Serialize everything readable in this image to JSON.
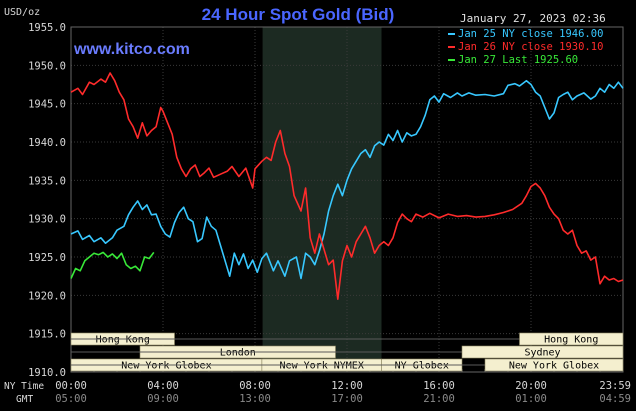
{
  "colors": {
    "background": "#000000",
    "grid": "#3a3a3a",
    "axis_text": "#d8d8d8",
    "title": "#4a66ff",
    "watermark": "#6a7cff",
    "shade": "#1c2a22",
    "session_fill": "#f4efcf",
    "session_text": "#000000",
    "series_jan25": "#38c8ff",
    "series_jan26": "#ff2b2b",
    "series_jan27": "#38e838",
    "hline": "#5a5a5a"
  },
  "chart_data": {
    "type": "line",
    "title": "24 Hour Spot Gold (Bid)",
    "unit_label": "USD/oz",
    "timestamp": "January 27, 2023 02:36",
    "watermark": "www.kitco.com",
    "ylim": [
      1910.0,
      1955.0
    ],
    "yticks": [
      "1955.0",
      "1950.0",
      "1945.0",
      "1940.0",
      "1935.0",
      "1930.0",
      "1925.0",
      "1920.0",
      "1915.0",
      "1910.0"
    ],
    "ytick_values": [
      1955,
      1950,
      1945,
      1940,
      1935,
      1930,
      1925,
      1920,
      1915,
      1910
    ],
    "xlim": [
      0,
      24
    ],
    "x_row1_label": "NY Time",
    "x_row2_label": "GMT",
    "xticks_ny": [
      "00:00",
      "04:00",
      "08:00",
      "12:00",
      "16:00",
      "20:00",
      "23:59"
    ],
    "xticks_gmt": [
      "05:00",
      "09:00",
      "13:00",
      "17:00",
      "21:00",
      "01:00",
      "04:59"
    ],
    "xtick_hours": [
      0,
      4,
      8,
      12,
      16,
      20,
      24
    ],
    "shaded_span": [
      8.33,
      13.5
    ],
    "legend": [
      {
        "text": "Jan 25 NY close 1946.00",
        "series": "jan25"
      },
      {
        "text": "Jan 26 NY close 1930.10",
        "series": "jan26"
      },
      {
        "text": "Jan 27 Last 1925.60",
        "series": "jan27"
      }
    ],
    "sessions": [
      {
        "label": "Hong Kong",
        "start": 0.0,
        "end": 4.5,
        "row": 0
      },
      {
        "label": "Hong Kong",
        "start": 19.5,
        "end": 24.0,
        "row": 0
      },
      {
        "label": "London",
        "start": 3.0,
        "end": 11.5,
        "row": 1
      },
      {
        "label": "Sydney",
        "start": 17.0,
        "end": 24.0,
        "row": 1
      },
      {
        "label": "New York Globex",
        "start": 0.0,
        "end": 8.3,
        "row": 2
      },
      {
        "label": "New York NYMEX",
        "start": 8.3,
        "end": 13.5,
        "row": 2
      },
      {
        "label": "NY Globex",
        "start": 13.5,
        "end": 17.0,
        "row": 2
      },
      {
        "label": "New York Globex",
        "start": 18.0,
        "end": 24.0,
        "row": 2
      }
    ],
    "series": [
      {
        "key": "jan25",
        "name": "Jan 25 NY close 1946.00",
        "x": [
          0.0,
          0.3,
          0.5,
          0.8,
          1.0,
          1.3,
          1.5,
          1.8,
          2.0,
          2.3,
          2.5,
          2.7,
          2.9,
          3.1,
          3.3,
          3.5,
          3.7,
          3.9,
          4.1,
          4.3,
          4.5,
          4.7,
          4.9,
          5.1,
          5.3,
          5.5,
          5.7,
          5.9,
          6.1,
          6.3,
          6.5,
          6.7,
          6.9,
          7.1,
          7.3,
          7.5,
          7.7,
          7.9,
          8.1,
          8.3,
          8.5,
          8.8,
          9.0,
          9.3,
          9.5,
          9.8,
          10.0,
          10.2,
          10.4,
          10.6,
          10.8,
          11.0,
          11.2,
          11.4,
          11.6,
          11.8,
          12.0,
          12.2,
          12.4,
          12.6,
          12.8,
          13.0,
          13.2,
          13.4,
          13.6,
          13.8,
          14.0,
          14.2,
          14.4,
          14.6,
          14.8,
          15.0,
          15.2,
          15.4,
          15.6,
          15.8,
          16.0,
          16.2,
          16.5,
          16.8,
          17.0,
          17.3,
          17.6,
          18.0,
          18.4,
          18.8,
          19.0,
          19.3,
          19.5,
          19.8,
          20.0,
          20.2,
          20.4,
          20.6,
          20.8,
          21.0,
          21.2,
          21.4,
          21.6,
          21.8,
          22.0,
          22.3,
          22.6,
          22.8,
          23.0,
          23.2,
          23.4,
          23.6,
          23.8,
          24.0
        ],
        "y": [
          1928.0,
          1928.4,
          1927.3,
          1927.8,
          1927.0,
          1927.5,
          1926.8,
          1927.5,
          1928.5,
          1929.0,
          1930.5,
          1931.5,
          1932.3,
          1931.2,
          1931.8,
          1930.5,
          1930.6,
          1929.0,
          1928.0,
          1927.6,
          1929.5,
          1930.8,
          1931.5,
          1930.0,
          1929.6,
          1927.0,
          1927.4,
          1930.2,
          1929.0,
          1928.5,
          1926.5,
          1924.5,
          1922.5,
          1925.5,
          1924.0,
          1925.4,
          1923.5,
          1924.6,
          1923.0,
          1924.8,
          1925.5,
          1923.2,
          1924.5,
          1922.5,
          1924.5,
          1925.0,
          1922.2,
          1925.5,
          1925.0,
          1924.0,
          1925.8,
          1928.0,
          1931.0,
          1933.0,
          1934.5,
          1933.0,
          1935.0,
          1936.5,
          1937.5,
          1938.5,
          1939.0,
          1938.0,
          1939.5,
          1940.0,
          1939.6,
          1941.0,
          1940.2,
          1941.5,
          1940.0,
          1941.2,
          1940.8,
          1941.0,
          1942.0,
          1943.5,
          1945.5,
          1946.0,
          1945.2,
          1946.3,
          1945.8,
          1946.4,
          1946.0,
          1946.4,
          1946.1,
          1946.2,
          1946.0,
          1946.3,
          1947.4,
          1947.6,
          1947.3,
          1948.0,
          1947.5,
          1946.5,
          1946.0,
          1944.5,
          1943.0,
          1943.8,
          1945.8,
          1946.2,
          1946.5,
          1945.5,
          1946.0,
          1946.4,
          1945.6,
          1946.0,
          1947.0,
          1946.5,
          1947.5,
          1947.0,
          1947.8,
          1947.0
        ]
      },
      {
        "key": "jan26",
        "name": "Jan 26 NY close 1930.10",
        "x": [
          0.0,
          0.3,
          0.5,
          0.8,
          1.0,
          1.3,
          1.5,
          1.7,
          1.9,
          2.1,
          2.3,
          2.5,
          2.7,
          2.9,
          3.1,
          3.3,
          3.5,
          3.7,
          3.9,
          4.0,
          4.2,
          4.4,
          4.6,
          4.8,
          5.0,
          5.2,
          5.4,
          5.6,
          5.8,
          6.0,
          6.2,
          6.5,
          6.8,
          7.0,
          7.3,
          7.6,
          7.9,
          8.0,
          8.3,
          8.5,
          8.7,
          8.9,
          9.1,
          9.3,
          9.5,
          9.7,
          10.0,
          10.2,
          10.4,
          10.6,
          10.8,
          11.0,
          11.2,
          11.4,
          11.6,
          11.8,
          12.0,
          12.2,
          12.4,
          12.6,
          12.8,
          13.0,
          13.2,
          13.4,
          13.6,
          13.8,
          14.0,
          14.2,
          14.4,
          14.6,
          14.8,
          15.0,
          15.3,
          15.6,
          16.0,
          16.4,
          16.8,
          17.2,
          17.6,
          18.0,
          18.4,
          18.8,
          19.2,
          19.6,
          19.8,
          20.0,
          20.2,
          20.4,
          20.6,
          20.8,
          21.0,
          21.2,
          21.4,
          21.6,
          21.8,
          22.0,
          22.2,
          22.4,
          22.6,
          22.8,
          23.0,
          23.2,
          23.4,
          23.6,
          23.8,
          24.0
        ],
        "y": [
          1946.5,
          1947.0,
          1946.2,
          1947.8,
          1947.5,
          1948.2,
          1947.8,
          1949.0,
          1948.0,
          1946.5,
          1945.5,
          1943.0,
          1942.0,
          1940.5,
          1942.5,
          1940.8,
          1941.5,
          1942.0,
          1944.5,
          1944.0,
          1942.5,
          1941.0,
          1938.0,
          1936.5,
          1935.5,
          1936.5,
          1937.0,
          1935.5,
          1936.0,
          1936.6,
          1935.4,
          1935.8,
          1936.2,
          1936.8,
          1935.5,
          1936.6,
          1934.0,
          1936.5,
          1937.5,
          1938.0,
          1937.6,
          1940.0,
          1941.5,
          1938.5,
          1936.8,
          1933.0,
          1931.0,
          1934.0,
          1927.5,
          1925.5,
          1928.0,
          1926.0,
          1924.0,
          1924.6,
          1919.5,
          1924.5,
          1926.5,
          1925.0,
          1927.0,
          1928.0,
          1929.0,
          1927.5,
          1925.5,
          1926.5,
          1927.0,
          1926.5,
          1927.5,
          1929.5,
          1930.6,
          1930.0,
          1929.6,
          1930.6,
          1930.2,
          1930.7,
          1930.1,
          1930.6,
          1930.3,
          1930.4,
          1930.2,
          1930.3,
          1930.5,
          1930.8,
          1931.2,
          1932.0,
          1933.0,
          1934.2,
          1934.6,
          1934.0,
          1933.0,
          1931.5,
          1930.6,
          1930.0,
          1928.5,
          1928.0,
          1928.5,
          1926.5,
          1925.5,
          1925.8,
          1924.6,
          1925.0,
          1921.5,
          1922.5,
          1922.0,
          1922.2,
          1921.8,
          1922.0
        ]
      },
      {
        "key": "jan27",
        "name": "Jan 27 Last 1925.60",
        "x": [
          0.0,
          0.2,
          0.4,
          0.6,
          0.8,
          1.0,
          1.2,
          1.4,
          1.6,
          1.8,
          2.0,
          2.2,
          2.4,
          2.6,
          2.8,
          3.0,
          3.2,
          3.4,
          3.6
        ],
        "y": [
          1922.2,
          1923.5,
          1923.2,
          1924.5,
          1925.0,
          1925.5,
          1925.3,
          1925.6,
          1925.0,
          1925.4,
          1924.8,
          1925.5,
          1924.0,
          1923.5,
          1923.8,
          1923.2,
          1925.0,
          1924.8,
          1925.6
        ]
      }
    ]
  }
}
